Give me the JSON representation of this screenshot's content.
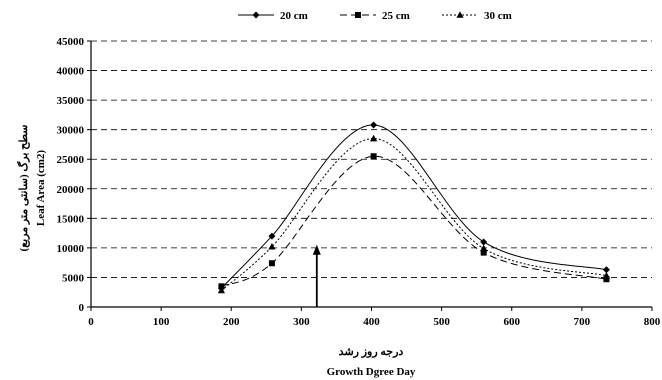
{
  "chart_data": {
    "type": "line",
    "title": "",
    "xlabel_fa": "درجه روز رشد",
    "xlabel": "Growth Dgree Day",
    "ylabel_fa": "سطح برگ (سانتی متر مربع)",
    "ylabel": "Leaf Area (cm2)",
    "xlim": [
      0,
      800
    ],
    "ylim": [
      0,
      45000
    ],
    "xticks": [
      0,
      100,
      200,
      300,
      400,
      500,
      600,
      700,
      800
    ],
    "yticks": [
      0,
      5000,
      10000,
      15000,
      20000,
      25000,
      30000,
      35000,
      40000,
      45000
    ],
    "grid": "horizontal dashed",
    "legend_position": "top",
    "series": [
      {
        "name": "20 cm",
        "marker": "diamond",
        "line_style": "solid",
        "points": [
          [
            186,
            3200
          ],
          [
            258,
            12000
          ],
          [
            403,
            30800
          ],
          [
            560,
            11000
          ],
          [
            735,
            6300
          ]
        ]
      },
      {
        "name": "25 cm",
        "marker": "square",
        "line_style": "dashed",
        "points": [
          [
            186,
            3500
          ],
          [
            258,
            7400
          ],
          [
            403,
            25500
          ],
          [
            560,
            9200
          ],
          [
            735,
            4700
          ]
        ]
      },
      {
        "name": "30 cm",
        "marker": "triangle",
        "line_style": "dotted",
        "points": [
          [
            186,
            2800
          ],
          [
            258,
            10200
          ],
          [
            403,
            28500
          ],
          [
            560,
            9900
          ],
          [
            735,
            5300
          ]
        ]
      }
    ],
    "annotation": {
      "type": "arrow",
      "x": 322,
      "y_from": 0,
      "y_to": 10200
    }
  }
}
